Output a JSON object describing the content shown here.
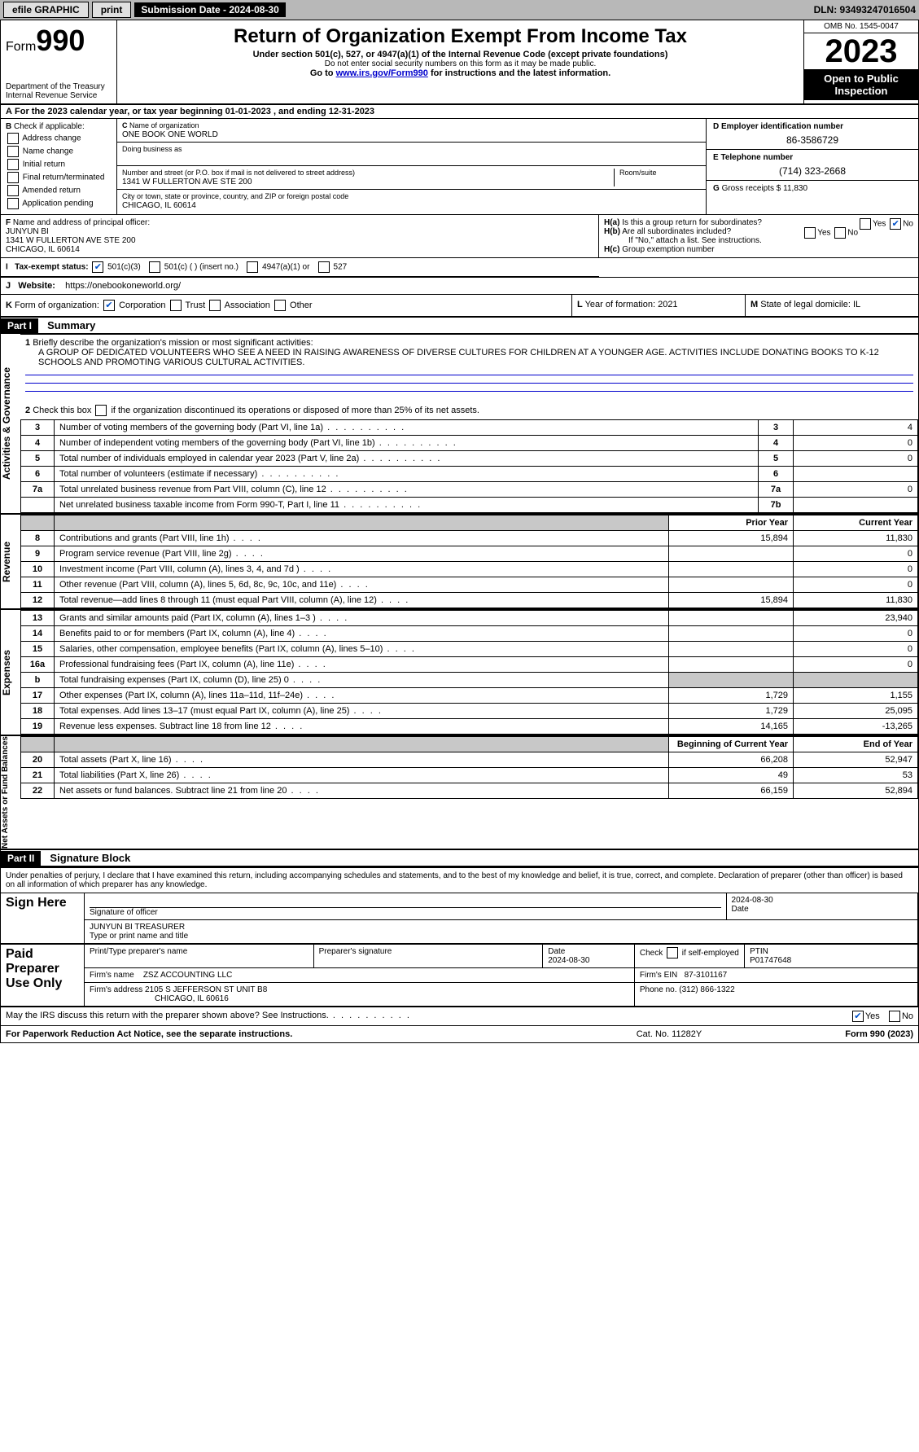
{
  "topbar": {
    "efile": "efile GRAPHIC",
    "print": "print",
    "subdate_label": "Submission Date - 2024-08-30",
    "dln": "DLN: 93493247016504"
  },
  "header": {
    "form_label": "Form",
    "form_number": "990",
    "dept1": "Department of the Treasury",
    "dept2": "Internal Revenue Service",
    "title": "Return of Organization Exempt From Income Tax",
    "subtitle": "Under section 501(c), 527, or 4947(a)(1) of the Internal Revenue Code (except private foundations)",
    "warn": "Do not enter social security numbers on this form as it may be made public.",
    "goto_pre": "Go to ",
    "goto_link": "www.irs.gov/Form990",
    "goto_post": " for instructions and the latest information.",
    "omb": "OMB No. 1545-0047",
    "year": "2023",
    "inspect": "Open to Public Inspection"
  },
  "A": {
    "text": "For the 2023 calendar year, or tax year beginning 01-01-2023   , and ending 12-31-2023"
  },
  "B": {
    "label": "Check if applicable:",
    "opts": [
      "Address change",
      "Name change",
      "Initial return",
      "Final return/terminated",
      "Amended return",
      "Application pending"
    ]
  },
  "C": {
    "name_label": "Name of organization",
    "name": "ONE BOOK ONE WORLD",
    "dba_label": "Doing business as",
    "dba": "",
    "addr_label": "Number and street (or P.O. box if mail is not delivered to street address)",
    "room_label": "Room/suite",
    "addr": "1341 W FULLERTON AVE STE 200",
    "city_label": "City or town, state or province, country, and ZIP or foreign postal code",
    "city": "CHICAGO, IL  60614"
  },
  "D": {
    "label": "Employer identification number",
    "val": "86-3586729"
  },
  "E": {
    "label": "Telephone number",
    "val": "(714) 323-2668"
  },
  "G": {
    "label": "Gross receipts $",
    "val": "11,830"
  },
  "F": {
    "label": "Name and address of principal officer:",
    "name": "JUNYUN BI",
    "addr1": "1341 W FULLERTON AVE STE 200",
    "addr2": "CHICAGO, IL  60614"
  },
  "H": {
    "a": "Is this a group return for subordinates?",
    "b": "Are all subordinates included?",
    "b_note": "If \"No,\" attach a list. See instructions.",
    "c": "Group exemption number",
    "yes": "Yes",
    "no": "No"
  },
  "I": {
    "label": "Tax-exempt status:",
    "o1": "501(c)(3)",
    "o2": "501(c) (  ) (insert no.)",
    "o3": "4947(a)(1) or",
    "o4": "527"
  },
  "J": {
    "label": "Website:",
    "val": "https://onebookoneworld.org/"
  },
  "K": {
    "label": "Form of organization:",
    "opts": [
      "Corporation",
      "Trust",
      "Association",
      "Other"
    ]
  },
  "L": {
    "label": "Year of formation:",
    "val": "2021"
  },
  "M": {
    "label": "State of legal domicile:",
    "val": "IL"
  },
  "partI": {
    "header": "Part I",
    "title": "Summary",
    "mission_label": "Briefly describe the organization's mission or most significant activities:",
    "mission": "A GROUP OF DEDICATED VOLUNTEERS WHO SEE A NEED IN RAISING AWARENESS OF DIVERSE CULTURES FOR CHILDREN AT A YOUNGER AGE. ACTIVITIES INCLUDE DONATING BOOKS TO K-12 SCHOOLS AND PROMOTING VARIOUS CULTURAL ACTIVITIES.",
    "line2": "Check this box      if the organization discontinued its operations or disposed of more than 25% of its net assets.",
    "rows_gov": [
      {
        "n": "3",
        "t": "Number of voting members of the governing body (Part VI, line 1a)",
        "box": "3",
        "v": "4"
      },
      {
        "n": "4",
        "t": "Number of independent voting members of the governing body (Part VI, line 1b)",
        "box": "4",
        "v": "0"
      },
      {
        "n": "5",
        "t": "Total number of individuals employed in calendar year 2023 (Part V, line 2a)",
        "box": "5",
        "v": "0"
      },
      {
        "n": "6",
        "t": "Total number of volunteers (estimate if necessary)",
        "box": "6",
        "v": ""
      },
      {
        "n": "7a",
        "t": "Total unrelated business revenue from Part VIII, column (C), line 12",
        "box": "7a",
        "v": "0"
      },
      {
        "n": "",
        "t": "Net unrelated business taxable income from Form 990-T, Part I, line 11",
        "box": "7b",
        "v": ""
      }
    ],
    "prior": "Prior Year",
    "current": "Current Year",
    "rev_rows": [
      {
        "n": "8",
        "t": "Contributions and grants (Part VIII, line 1h)",
        "p": "15,894",
        "c": "11,830"
      },
      {
        "n": "9",
        "t": "Program service revenue (Part VIII, line 2g)",
        "p": "",
        "c": "0"
      },
      {
        "n": "10",
        "t": "Investment income (Part VIII, column (A), lines 3, 4, and 7d )",
        "p": "",
        "c": "0"
      },
      {
        "n": "11",
        "t": "Other revenue (Part VIII, column (A), lines 5, 6d, 8c, 9c, 10c, and 11e)",
        "p": "",
        "c": "0"
      },
      {
        "n": "12",
        "t": "Total revenue—add lines 8 through 11 (must equal Part VIII, column (A), line 12)",
        "p": "15,894",
        "c": "11,830"
      }
    ],
    "exp_rows": [
      {
        "n": "13",
        "t": "Grants and similar amounts paid (Part IX, column (A), lines 1–3 )",
        "p": "",
        "c": "23,940"
      },
      {
        "n": "14",
        "t": "Benefits paid to or for members (Part IX, column (A), line 4)",
        "p": "",
        "c": "0"
      },
      {
        "n": "15",
        "t": "Salaries, other compensation, employee benefits (Part IX, column (A), lines 5–10)",
        "p": "",
        "c": "0"
      },
      {
        "n": "16a",
        "t": "Professional fundraising fees (Part IX, column (A), line 11e)",
        "p": "",
        "c": "0"
      },
      {
        "n": "b",
        "t": "Total fundraising expenses (Part IX, column (D), line 25) 0",
        "p": "shade",
        "c": "shade"
      },
      {
        "n": "17",
        "t": "Other expenses (Part IX, column (A), lines 11a–11d, 11f–24e)",
        "p": "1,729",
        "c": "1,155"
      },
      {
        "n": "18",
        "t": "Total expenses. Add lines 13–17 (must equal Part IX, column (A), line 25)",
        "p": "1,729",
        "c": "25,095"
      },
      {
        "n": "19",
        "t": "Revenue less expenses. Subtract line 18 from line 12",
        "p": "14,165",
        "c": "-13,265"
      }
    ],
    "begin": "Beginning of Current Year",
    "end": "End of Year",
    "na_rows": [
      {
        "n": "20",
        "t": "Total assets (Part X, line 16)",
        "p": "66,208",
        "c": "52,947"
      },
      {
        "n": "21",
        "t": "Total liabilities (Part X, line 26)",
        "p": "49",
        "c": "53"
      },
      {
        "n": "22",
        "t": "Net assets or fund balances. Subtract line 21 from line 20",
        "p": "66,159",
        "c": "52,894"
      }
    ],
    "vlabels": {
      "gov": "Activities & Governance",
      "rev": "Revenue",
      "exp": "Expenses",
      "na": "Net Assets or Fund Balances"
    }
  },
  "partII": {
    "header": "Part II",
    "title": "Signature Block",
    "declare": "Under penalties of perjury, I declare that I have examined this return, including accompanying schedules and statements, and to the best of my knowledge and belief, it is true, correct, and complete. Declaration of preparer (other than officer) is based on all information of which preparer has any knowledge.",
    "sign_here": "Sign Here",
    "sig_officer": "Signature of officer",
    "sig_date": "2024-08-30",
    "name_title": "JUNYUN BI  TREASURER",
    "type_label": "Type or print name and title",
    "date_label": "Date",
    "paid": "Paid Preparer Use Only",
    "prep_name_label": "Print/Type preparer's name",
    "prep_sig_label": "Preparer's signature",
    "prep_date": "2024-08-30",
    "check_self": "Check       if self-employed",
    "ptin_label": "PTIN",
    "ptin": "P01747648",
    "firm_label": "Firm's name",
    "firm": "ZSZ ACCOUNTING LLC",
    "firm_ein_label": "Firm's EIN",
    "firm_ein": "87-3101167",
    "firm_addr_label": "Firm's address",
    "firm_addr1": "2105 S JEFFERSON ST UNIT B8",
    "firm_addr2": "CHICAGO, IL  60616",
    "phone_label": "Phone no.",
    "phone": "(312) 866-1322",
    "may_discuss": "May the IRS discuss this return with the preparer shown above? See Instructions."
  },
  "footer": {
    "pra": "For Paperwork Reduction Act Notice, see the separate instructions.",
    "cat": "Cat. No. 11282Y",
    "form": "Form 990 (2023)"
  }
}
